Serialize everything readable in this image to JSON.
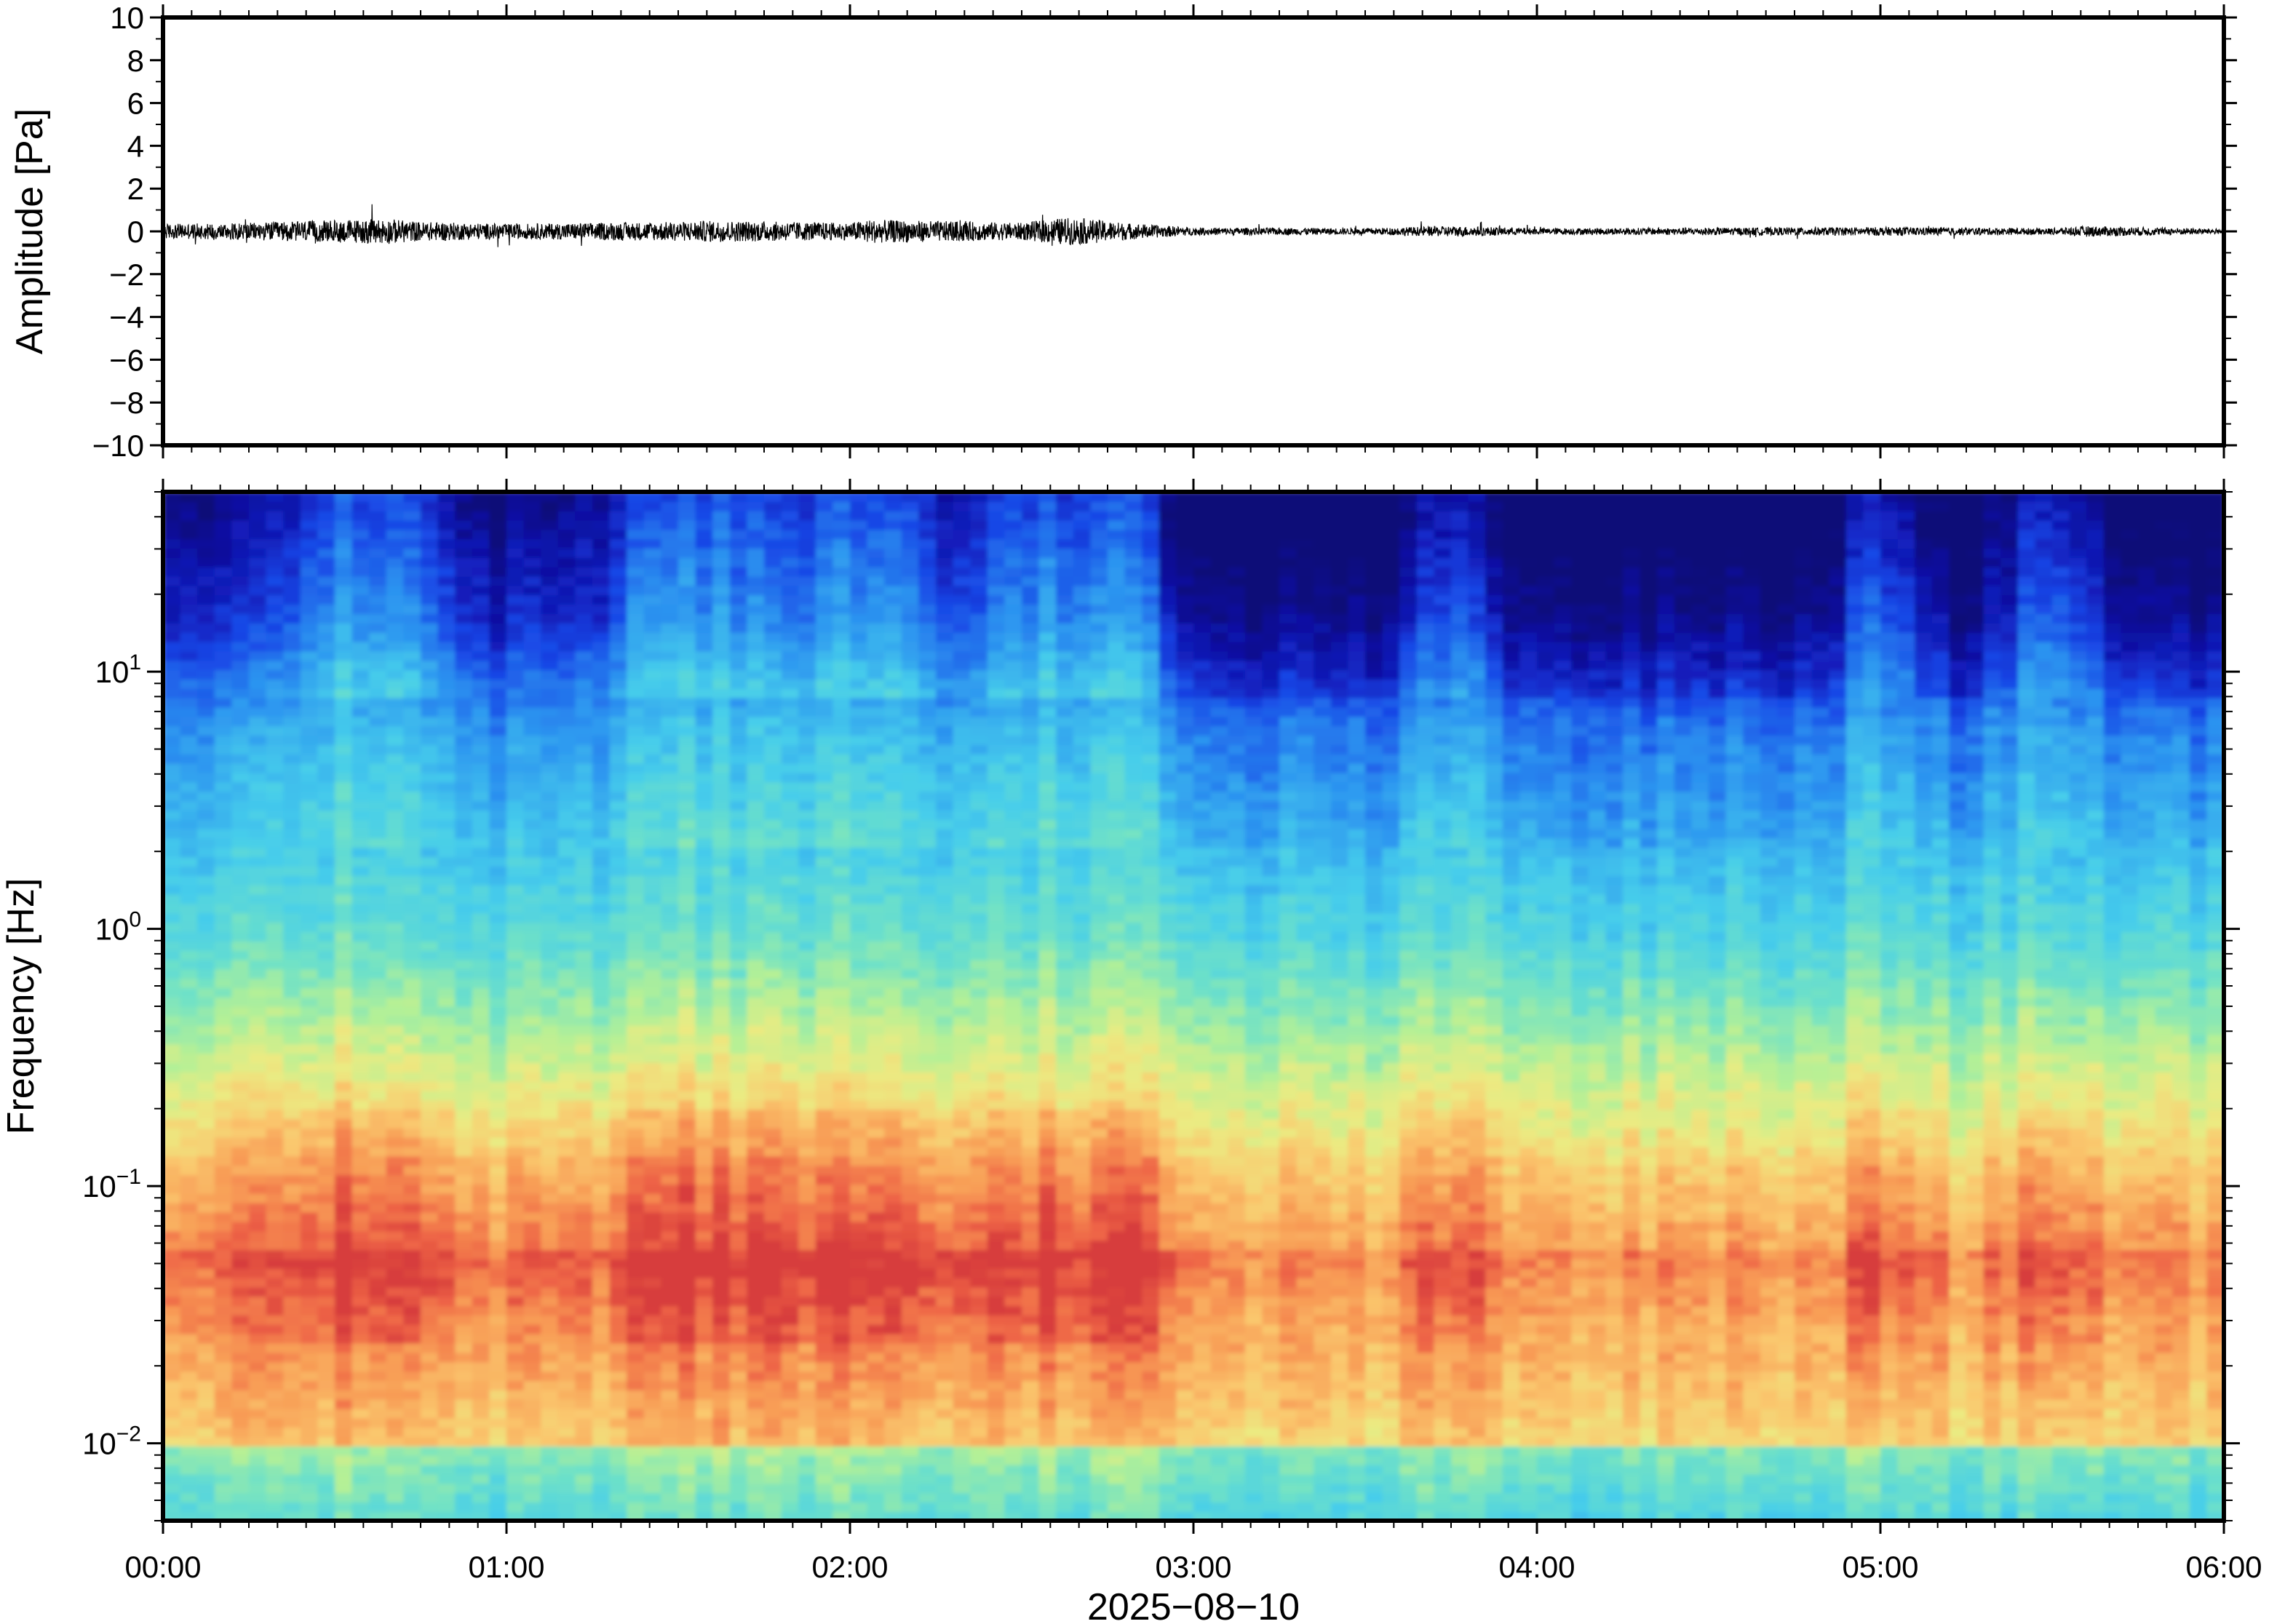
{
  "chart_data": [
    {
      "type": "line",
      "ylabel": "Amplitude [Pa]",
      "ylim": [
        -10,
        10
      ],
      "yticks": [
        10,
        8,
        6,
        4,
        2,
        0,
        -2,
        -4,
        -6,
        -8,
        -10
      ],
      "ytick_labels": [
        "10",
        "8",
        "6",
        "4",
        "2",
        "0",
        "−2",
        "−4",
        "−6",
        "−8",
        "−10"
      ],
      "xlim_hours": [
        0,
        6
      ],
      "grid": false,
      "line_color": "#000000",
      "envelope": {
        "t_hours": [
          0.0,
          0.25,
          0.55,
          0.65,
          0.75,
          1.0,
          1.5,
          1.6,
          2.0,
          2.05,
          2.5,
          2.6,
          2.65,
          2.8,
          3.0,
          3.5,
          3.75,
          4.0,
          5.0,
          5.5,
          5.6,
          6.0
        ],
        "amplitude_pa": [
          0.35,
          0.4,
          0.55,
          0.6,
          0.45,
          0.35,
          0.45,
          0.5,
          0.4,
          0.55,
          0.4,
          0.6,
          0.65,
          0.4,
          0.18,
          0.15,
          0.25,
          0.15,
          0.2,
          0.15,
          0.25,
          0.12
        ]
      }
    },
    {
      "type": "heatmap",
      "xlabel": "2025−08−10",
      "ylabel": "Frequency [Hz]",
      "yscale": "log",
      "ylim_hz": [
        0.005,
        50
      ],
      "yticks_hz": [
        10,
        1,
        0.1,
        0.01
      ],
      "ytick_labels": [
        {
          "base": "10",
          "exp": "1"
        },
        {
          "base": "10",
          "exp": "0"
        },
        {
          "base": "10",
          "exp": "−1"
        },
        {
          "base": "10",
          "exp": "−2"
        }
      ],
      "xticks": [
        "00:00",
        "01:00",
        "02:00",
        "03:00",
        "04:00",
        "05:00",
        "06:00"
      ],
      "colormap": "jet-like (dark navy at high frequency, cyan/green mid, orange/red near 0.05 Hz, cyan at lowest frequency)",
      "grid": false
    }
  ]
}
